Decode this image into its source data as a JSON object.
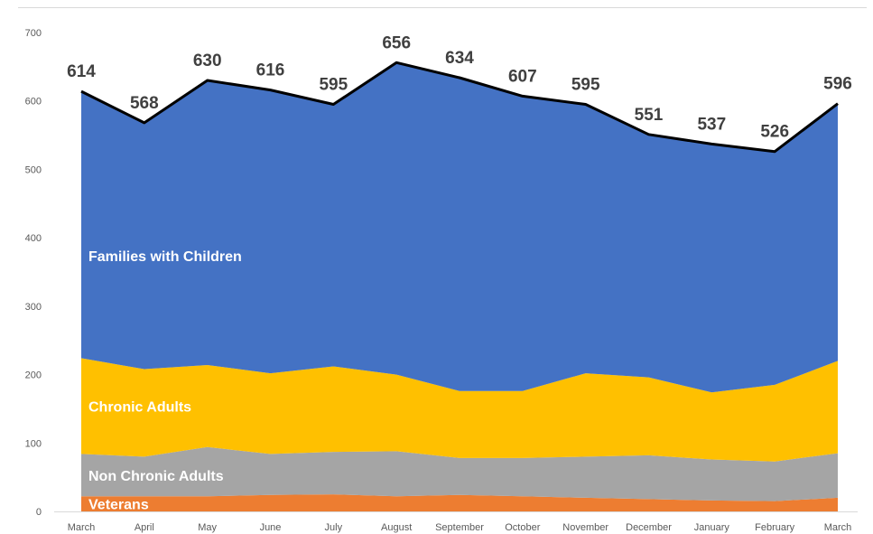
{
  "chart_data": {
    "type": "area",
    "stacked": true,
    "categories": [
      "March",
      "April",
      "May",
      "June",
      "July",
      "August",
      "September",
      "October",
      "November",
      "December",
      "January",
      "February",
      "March"
    ],
    "ylim": [
      0,
      700
    ],
    "yticks": [
      0,
      100,
      200,
      300,
      400,
      500,
      600,
      700
    ],
    "series": [
      {
        "name": "Veterans",
        "color": "#ed7d31",
        "values": [
          22,
          22,
          22,
          24,
          25,
          22,
          24,
          22,
          20,
          18,
          16,
          15,
          20
        ]
      },
      {
        "name": "Non Chronic Adults",
        "color": "#a5a5a5",
        "values": [
          62,
          58,
          72,
          60,
          62,
          66,
          54,
          56,
          60,
          64,
          60,
          58,
          65
        ]
      },
      {
        "name": "Chronic Adults",
        "color": "#ffc000",
        "values": [
          140,
          128,
          120,
          118,
          125,
          112,
          98,
          98,
          122,
          114,
          98,
          112,
          135
        ]
      },
      {
        "name": "Families with Children",
        "color": "#4472c4",
        "values": [
          390,
          360,
          416,
          414,
          383,
          456,
          458,
          431,
          393,
          355,
          363,
          341,
          376
        ]
      }
    ],
    "totals": [
      614,
      568,
      630,
      616,
      595,
      656,
      634,
      607,
      595,
      551,
      537,
      526,
      596
    ],
    "total_line_color": "#000000",
    "grid": false,
    "legend": "inline labels"
  }
}
